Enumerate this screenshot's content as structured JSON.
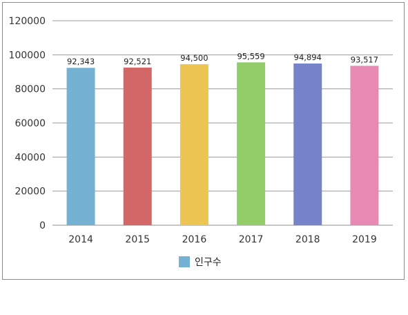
{
  "chart_data": {
    "type": "bar",
    "categories": [
      "2014",
      "2015",
      "2016",
      "2017",
      "2018",
      "2019"
    ],
    "series": [
      {
        "name": "인구수",
        "values": [
          92343,
          92521,
          94500,
          95559,
          94894,
          93517
        ],
        "data_labels": [
          "92,343",
          "92,521",
          "94,500",
          "95,559",
          "94,894",
          "93,517"
        ]
      }
    ],
    "bar_colors": [
      "#74b1d3",
      "#d36666",
      "#ecc553",
      "#92cd69",
      "#7683c8",
      "#e789b2"
    ],
    "legend_color": "#74b1d3",
    "ylim": [
      0,
      120000
    ],
    "yticks": [
      "0",
      "20000",
      "40000",
      "60000",
      "80000",
      "100000",
      "120000"
    ],
    "grid": true,
    "legend_position": "bottom"
  }
}
